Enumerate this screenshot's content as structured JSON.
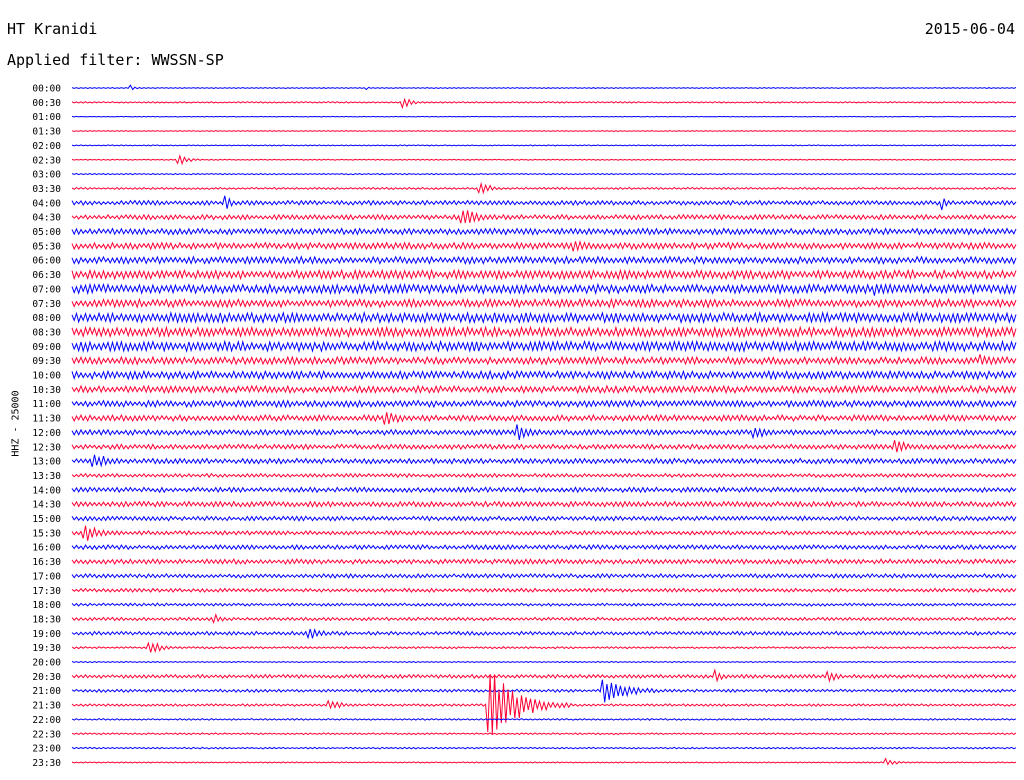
{
  "header": {
    "station": "HT Kranidi",
    "filter": "Applied filter: WWSSN-SP",
    "date": "2015-06-04",
    "channel": "HHZ - 25000"
  },
  "colors": {
    "even_trace": "#0000ff",
    "odd_trace": "#ff0033",
    "background": "#ffffff"
  },
  "chart_data": {
    "type": "line",
    "title": "",
    "xlabel": "",
    "ylabel": "HHZ - 25000",
    "rows": [
      {
        "label": "00:00",
        "level": 0.5
      },
      {
        "label": "00:30",
        "level": 0.7
      },
      {
        "label": "01:00",
        "level": 0.3
      },
      {
        "label": "01:30",
        "level": 0.4
      },
      {
        "label": "02:00",
        "level": 0.5
      },
      {
        "label": "02:30",
        "level": 0.5
      },
      {
        "label": "03:00",
        "level": 0.6
      },
      {
        "label": "03:30",
        "level": 1.0
      },
      {
        "label": "04:00",
        "level": 2.2
      },
      {
        "label": "04:30",
        "level": 2.4
      },
      {
        "label": "05:00",
        "level": 3.0
      },
      {
        "label": "05:30",
        "level": 3.2
      },
      {
        "label": "06:00",
        "level": 3.4
      },
      {
        "label": "06:30",
        "level": 4.2
      },
      {
        "label": "07:00",
        "level": 4.4
      },
      {
        "label": "07:30",
        "level": 4.0
      },
      {
        "label": "08:00",
        "level": 4.8
      },
      {
        "label": "08:30",
        "level": 4.6
      },
      {
        "label": "09:00",
        "level": 4.8
      },
      {
        "label": "09:30",
        "level": 3.6
      },
      {
        "label": "10:00",
        "level": 3.8
      },
      {
        "label": "10:30",
        "level": 3.4
      },
      {
        "label": "11:00",
        "level": 3.2
      },
      {
        "label": "11:30",
        "level": 3.0
      },
      {
        "label": "12:00",
        "level": 2.6
      },
      {
        "label": "12:30",
        "level": 2.4
      },
      {
        "label": "13:00",
        "level": 2.6
      },
      {
        "label": "13:30",
        "level": 1.8
      },
      {
        "label": "14:00",
        "level": 2.4
      },
      {
        "label": "14:30",
        "level": 2.6
      },
      {
        "label": "15:00",
        "level": 2.2
      },
      {
        "label": "15:30",
        "level": 2.0
      },
      {
        "label": "16:00",
        "level": 2.2
      },
      {
        "label": "16:30",
        "level": 2.4
      },
      {
        "label": "17:00",
        "level": 2.0
      },
      {
        "label": "17:30",
        "level": 1.8
      },
      {
        "label": "18:00",
        "level": 1.4
      },
      {
        "label": "18:30",
        "level": 1.6
      },
      {
        "label": "19:00",
        "level": 1.8
      },
      {
        "label": "19:30",
        "level": 1.0
      },
      {
        "label": "20:00",
        "level": 0.6
      },
      {
        "label": "20:30",
        "level": 1.8
      },
      {
        "label": "21:00",
        "level": 1.4
      },
      {
        "label": "21:30",
        "level": 1.2
      },
      {
        "label": "22:00",
        "level": 0.8
      },
      {
        "label": "22:30",
        "level": 0.8
      },
      {
        "label": "23:00",
        "level": 0.8
      },
      {
        "label": "23:30",
        "level": 0.6
      }
    ],
    "events": [
      {
        "row": 0,
        "pos": 0.06,
        "amp": 4,
        "dur": 0.02
      },
      {
        "row": 0,
        "pos": 0.31,
        "amp": 4,
        "dur": 0.01
      },
      {
        "row": 1,
        "pos": 0.35,
        "amp": 6,
        "dur": 0.03
      },
      {
        "row": 5,
        "pos": 0.11,
        "amp": 8,
        "dur": 0.03
      },
      {
        "row": 7,
        "pos": 0.43,
        "amp": 8,
        "dur": 0.04
      },
      {
        "row": 8,
        "pos": 0.16,
        "amp": 9,
        "dur": 0.03
      },
      {
        "row": 8,
        "pos": 0.92,
        "amp": 13,
        "dur": 0.02
      },
      {
        "row": 9,
        "pos": 0.41,
        "amp": 11,
        "dur": 0.06
      },
      {
        "row": 11,
        "pos": 0.53,
        "amp": 9,
        "dur": 0.05
      },
      {
        "row": 14,
        "pos": 0.85,
        "amp": 9,
        "dur": 0.05
      },
      {
        "row": 19,
        "pos": 0.96,
        "amp": 10,
        "dur": 0.04
      },
      {
        "row": 23,
        "pos": 0.33,
        "amp": 11,
        "dur": 0.05
      },
      {
        "row": 24,
        "pos": 0.47,
        "amp": 10,
        "dur": 0.05
      },
      {
        "row": 24,
        "pos": 0.72,
        "amp": 10,
        "dur": 0.04
      },
      {
        "row": 25,
        "pos": 0.87,
        "amp": 10,
        "dur": 0.05
      },
      {
        "row": 26,
        "pos": 0.02,
        "amp": 10,
        "dur": 0.06
      },
      {
        "row": 31,
        "pos": 0.01,
        "amp": 12,
        "dur": 0.05
      },
      {
        "row": 37,
        "pos": 0.15,
        "amp": 6,
        "dur": 0.03
      },
      {
        "row": 38,
        "pos": 0.25,
        "amp": 8,
        "dur": 0.04
      },
      {
        "row": 39,
        "pos": 0.08,
        "amp": 9,
        "dur": 0.04
      },
      {
        "row": 41,
        "pos": 0.68,
        "amp": 8,
        "dur": 0.03
      },
      {
        "row": 41,
        "pos": 0.8,
        "amp": 8,
        "dur": 0.03
      },
      {
        "row": 42,
        "pos": 0.56,
        "amp": 16,
        "dur": 0.08
      },
      {
        "row": 43,
        "pos": 0.27,
        "amp": 6,
        "dur": 0.05
      },
      {
        "row": 43,
        "pos": 0.44,
        "amp": 40,
        "dur": 0.09
      },
      {
        "row": 47,
        "pos": 0.86,
        "amp": 6,
        "dur": 0.03
      }
    ]
  }
}
